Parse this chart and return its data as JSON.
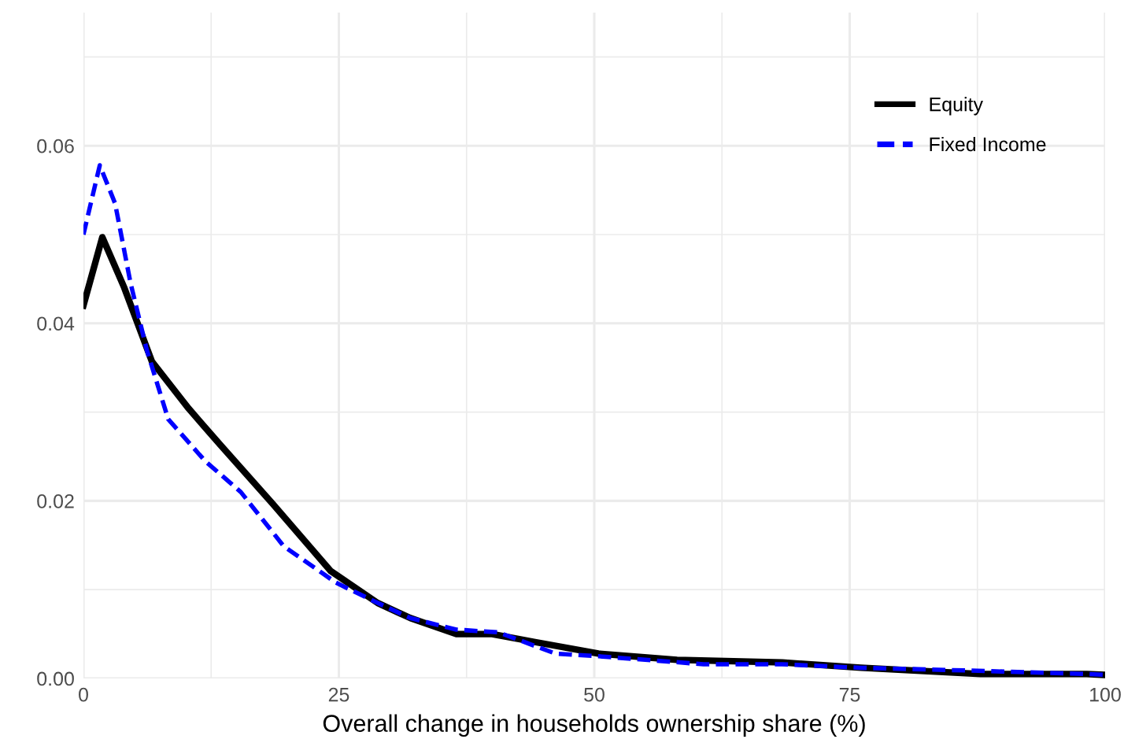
{
  "chart_data": {
    "type": "line",
    "xlabel": "Overall change in households ownership share (%)",
    "xlim": [
      0,
      100
    ],
    "xticks": [
      0,
      25,
      50,
      75,
      100
    ],
    "ylim": [
      0,
      0.075
    ],
    "yticks": [
      {
        "value": 0,
        "label": "0.00"
      },
      {
        "value": 0.02,
        "label": "0.02"
      },
      {
        "value": 0.04,
        "label": "0.04"
      },
      {
        "value": 0.06,
        "label": "0.06"
      }
    ],
    "grid": true,
    "legend": "top right",
    "marker": "none",
    "series": [
      {
        "name": "Equity",
        "color": "#000000",
        "line_style": "solid",
        "x": [
          0,
          1.85,
          4,
          6.7,
          10.3,
          13.4,
          18.5,
          24.2,
          28.8,
          32,
          36.5,
          40,
          44.2,
          50.4,
          58.1,
          68.4,
          76.1,
          87.8,
          98.2,
          100
        ],
        "values": [
          0.042,
          0.0497,
          0.044,
          0.0357,
          0.0304,
          0.0263,
          0.0197,
          0.0121,
          0.0085,
          0.0068,
          0.005,
          0.005,
          0.0041,
          0.0028,
          0.0021,
          0.0018,
          0.0012,
          0.0005,
          0.0005,
          0.0004
        ]
      },
      {
        "name": "Fixed Income",
        "color": "#0000ff",
        "line_style": "dashed",
        "x": [
          0,
          1.6,
          3.1,
          4.6,
          6.2,
          8.3,
          11.9,
          15.4,
          19.6,
          24.7,
          28.8,
          32,
          36.5,
          40.6,
          46.2,
          50.4,
          60.7,
          68.4,
          76.1,
          86.3,
          98.2,
          100
        ],
        "values": [
          0.05,
          0.0578,
          0.0535,
          0.0446,
          0.037,
          0.0292,
          0.0245,
          0.021,
          0.0149,
          0.0108,
          0.0085,
          0.0068,
          0.0055,
          0.0052,
          0.0028,
          0.0025,
          0.0016,
          0.0016,
          0.0012,
          0.0009,
          0.0005,
          0.0004
        ]
      }
    ]
  }
}
